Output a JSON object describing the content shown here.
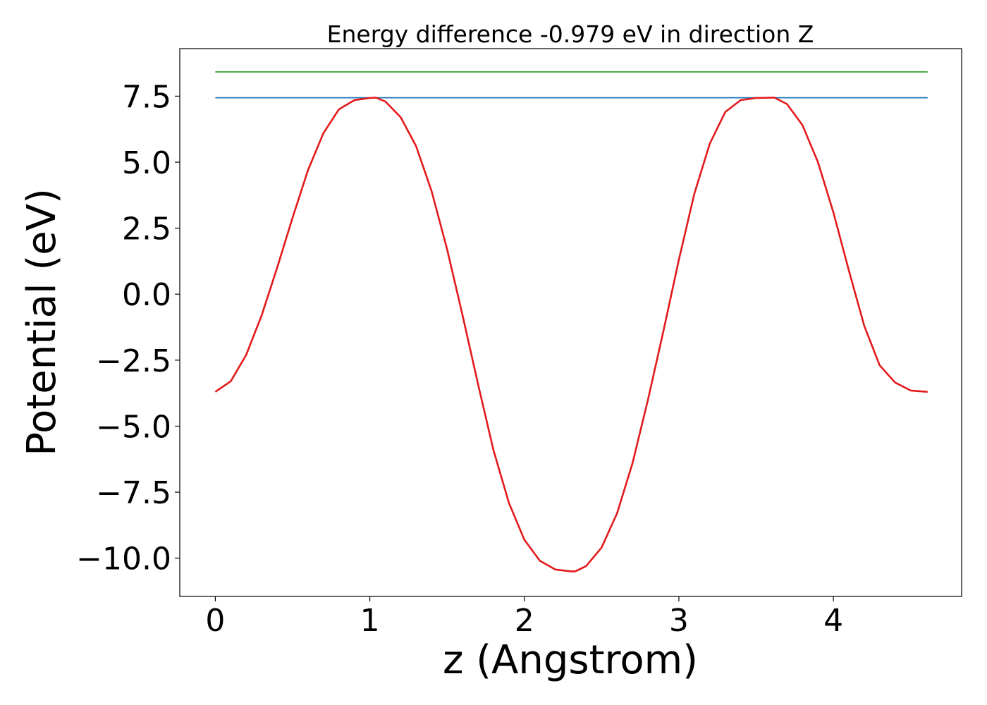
{
  "chart_data": {
    "type": "line",
    "title": "Energy difference -0.979 eV in direction Z",
    "xlabel": "z (Angstrom)",
    "ylabel": "Potential (eV)",
    "xlim": [
      -0.23,
      4.83
    ],
    "ylim": [
      -11.45,
      9.3
    ],
    "xticks": [
      0,
      1,
      2,
      3,
      4
    ],
    "xtick_labels": [
      "0",
      "1",
      "2",
      "3",
      "4"
    ],
    "yticks": [
      -10.0,
      -7.5,
      -5.0,
      -2.5,
      0.0,
      2.5,
      5.0,
      7.5
    ],
    "ytick_labels": [
      "−10.0",
      "−7.5",
      "−5.0",
      "−2.5",
      "0.0",
      "2.5",
      "5.0",
      "7.5"
    ],
    "grid": false,
    "legend": "none",
    "series": [
      {
        "color": "#2ca02c",
        "x": [
          0,
          4.61
        ],
        "y": [
          8.42,
          8.42
        ]
      },
      {
        "color": "#1f77b4",
        "x": [
          0,
          4.61
        ],
        "y": [
          7.44,
          7.44
        ]
      },
      {
        "color": "#e31a1c",
        "x": [
          0,
          0.1,
          0.2,
          0.3,
          0.4,
          0.5,
          0.6,
          0.7,
          0.8,
          0.9,
          1.0,
          1.04,
          1.1,
          1.2,
          1.3,
          1.4,
          1.5,
          1.6,
          1.7,
          1.8,
          1.9,
          2.0,
          2.1,
          2.2,
          2.3,
          2.33,
          2.4,
          2.5,
          2.6,
          2.7,
          2.8,
          2.9,
          3.0,
          3.1,
          3.2,
          3.3,
          3.4,
          3.5,
          3.6,
          3.62,
          3.7,
          3.8,
          3.9,
          4.0,
          4.1,
          4.2,
          4.3,
          4.4,
          4.5,
          4.61
        ],
        "y": [
          -3.7,
          -3.3,
          -2.3,
          -0.8,
          1.0,
          2.9,
          4.7,
          6.1,
          7.0,
          7.35,
          7.43,
          7.44,
          7.3,
          6.7,
          5.6,
          3.9,
          1.7,
          -0.8,
          -3.4,
          -5.9,
          -7.9,
          -9.3,
          -10.1,
          -10.43,
          -10.5,
          -10.5,
          -10.3,
          -9.6,
          -8.3,
          -6.4,
          -4.0,
          -1.4,
          1.3,
          3.8,
          5.7,
          6.9,
          7.35,
          7.43,
          7.44,
          7.44,
          7.2,
          6.4,
          5.0,
          3.1,
          0.9,
          -1.2,
          -2.7,
          -3.35,
          -3.65,
          -3.7
        ]
      }
    ]
  }
}
